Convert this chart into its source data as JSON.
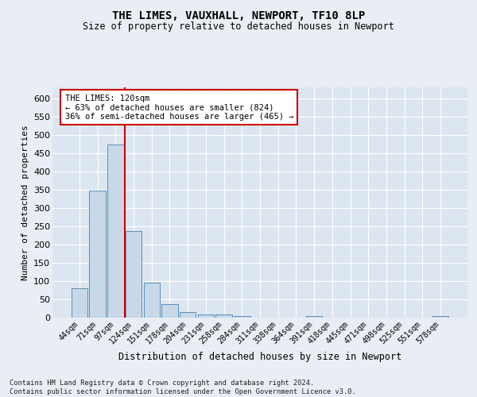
{
  "title_line1": "THE LIMES, VAUXHALL, NEWPORT, TF10 8LP",
  "title_line2": "Size of property relative to detached houses in Newport",
  "xlabel": "Distribution of detached houses by size in Newport",
  "ylabel": "Number of detached properties",
  "categories": [
    "44sqm",
    "71sqm",
    "97sqm",
    "124sqm",
    "151sqm",
    "178sqm",
    "204sqm",
    "231sqm",
    "258sqm",
    "284sqm",
    "311sqm",
    "338sqm",
    "364sqm",
    "391sqm",
    "418sqm",
    "445sqm",
    "471sqm",
    "498sqm",
    "525sqm",
    "551sqm",
    "578sqm"
  ],
  "values": [
    80,
    348,
    473,
    236,
    95,
    37,
    16,
    8,
    8,
    4,
    0,
    0,
    0,
    5,
    0,
    0,
    0,
    0,
    0,
    0,
    4
  ],
  "bar_color": "#c8d8e8",
  "bar_edge_color": "#5b8db8",
  "vline_color": "#cc0000",
  "vline_x": 2.5,
  "annotation_text": "THE LIMES: 120sqm\n← 63% of detached houses are smaller (824)\n36% of semi-detached houses are larger (465) →",
  "annotation_box_facecolor": "#ffffff",
  "annotation_box_edgecolor": "#cc0000",
  "bg_color": "#e8eef4",
  "plot_bg_color": "#dce6f0",
  "grid_color": "#ffffff",
  "footer_line1": "Contains HM Land Registry data © Crown copyright and database right 2024.",
  "footer_line2": "Contains public sector information licensed under the Open Government Licence v3.0.",
  "ylim_max": 630,
  "yticks": [
    0,
    50,
    100,
    150,
    200,
    250,
    300,
    350,
    400,
    450,
    500,
    550,
    600
  ]
}
